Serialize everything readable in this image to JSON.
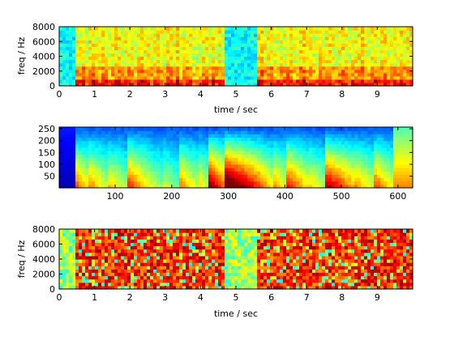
{
  "colors": {
    "colormap": "jet",
    "background": "#ffffff",
    "axes": "#000000"
  },
  "chart_data": [
    {
      "type": "heatmap",
      "title": "",
      "xlabel": "time / sec",
      "ylabel": "freq / Hz",
      "xlim": [
        0,
        10
      ],
      "ylim": [
        0,
        8000
      ],
      "xticks": [
        0,
        1,
        2,
        3,
        4,
        5,
        6,
        7,
        8,
        9
      ],
      "xtick_labels": [
        "0",
        "1",
        "2",
        "3",
        "4",
        "5",
        "6",
        "7",
        "8",
        "9"
      ],
      "yticks": [
        0,
        2000,
        4000,
        6000,
        8000
      ],
      "ytick_labels": [
        "0",
        "2000",
        "4000",
        "6000",
        "8000"
      ],
      "colormap": "jet",
      "silent_segments_sec": [
        [
          0,
          0.5
        ],
        [
          4.7,
          5.6
        ]
      ],
      "time_profile": [
        0.2,
        0.2,
        0.2,
        0.2,
        0.2,
        0.8,
        0.9,
        0.7,
        0.85,
        0.95,
        0.8,
        0.75,
        0.9,
        0.85,
        0.7,
        0.8,
        0.9,
        0.75,
        0.85,
        0.9,
        0.8,
        0.7,
        0.85,
        0.95,
        0.8,
        0.9,
        0.75,
        0.85,
        0.8,
        0.7,
        0.9,
        0.85,
        0.8,
        0.95,
        0.75,
        0.8,
        0.9,
        0.85,
        0.7,
        0.8,
        0.9,
        0.85,
        0.75,
        0.9,
        0.8,
        0.85,
        0.7,
        0.15,
        0.15,
        0.15,
        0.15,
        0.15,
        0.15,
        0.15,
        0.15,
        0.15,
        0.9,
        0.95,
        0.8,
        0.85,
        0.9,
        0.75,
        0.85,
        0.8,
        0.9,
        0.85,
        0.7,
        0.8,
        0.9,
        0.95,
        0.8,
        0.85,
        0.75,
        0.9,
        0.8,
        0.85,
        0.9,
        0.8,
        0.75,
        0.85,
        0.9,
        0.8,
        0.7,
        0.85,
        0.9,
        0.95,
        0.8,
        0.75,
        0.85,
        0.9,
        0.8,
        0.85,
        0.9,
        0.75,
        0.8,
        0.85,
        0.9,
        0.8,
        0.85,
        0.9
      ]
    },
    {
      "type": "heatmap",
      "title": "",
      "xlabel": "",
      "ylabel": "",
      "xlim": [
        1,
        626
      ],
      "ylim": [
        1,
        257
      ],
      "xticks": [
        100,
        200,
        300,
        400,
        500,
        600
      ],
      "xtick_labels": [
        "100",
        "200",
        "300",
        "400",
        "500",
        "600"
      ],
      "yticks": [
        50,
        100,
        150,
        200,
        250
      ],
      "ytick_labels": [
        "50",
        "100",
        "150",
        "200",
        "250"
      ],
      "colormap": "jet",
      "segment_boundaries": [
        30,
        55,
        85,
        120,
        155,
        185,
        215,
        245,
        265,
        295,
        355,
        380,
        405,
        440,
        470,
        520,
        560,
        590,
        626
      ],
      "segment_cutoff": [
        0.95,
        0.55,
        0.5,
        0.45,
        0.6,
        0.4,
        0.35,
        0.5,
        0.45,
        0.75,
        0.85,
        0.55,
        0.5,
        0.6,
        0.45,
        0.7,
        0.5,
        0.55,
        0.6
      ]
    },
    {
      "type": "heatmap",
      "title": "",
      "xlabel": "time / sec",
      "ylabel": "freq / Hz",
      "xlim": [
        0,
        10
      ],
      "ylim": [
        0,
        8000
      ],
      "xticks": [
        0,
        1,
        2,
        3,
        4,
        5,
        6,
        7,
        8,
        9
      ],
      "xtick_labels": [
        "0",
        "1",
        "2",
        "3",
        "4",
        "5",
        "6",
        "7",
        "8",
        "9"
      ],
      "yticks": [
        0,
        2000,
        4000,
        6000,
        8000
      ],
      "ytick_labels": [
        "0",
        "2000",
        "4000",
        "6000",
        "8000"
      ],
      "colormap": "jet",
      "silent_segments_sec": [
        [
          0,
          0.5
        ],
        [
          4.7,
          5.6
        ]
      ]
    }
  ]
}
